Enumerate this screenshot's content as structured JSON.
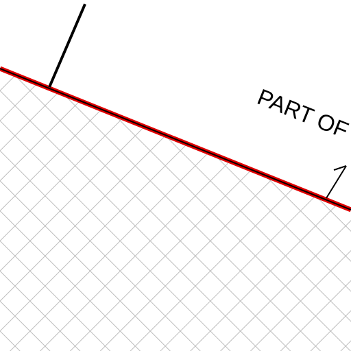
{
  "drawing": {
    "label": "PART OF",
    "colors": {
      "background": "#ffffff",
      "boundary_red": "#e00000",
      "boundary_black": "#000000",
      "hatch": "#bdbdbd",
      "leader": "#000000",
      "text": "#000000"
    },
    "hatch_pattern": "crosshatch"
  }
}
